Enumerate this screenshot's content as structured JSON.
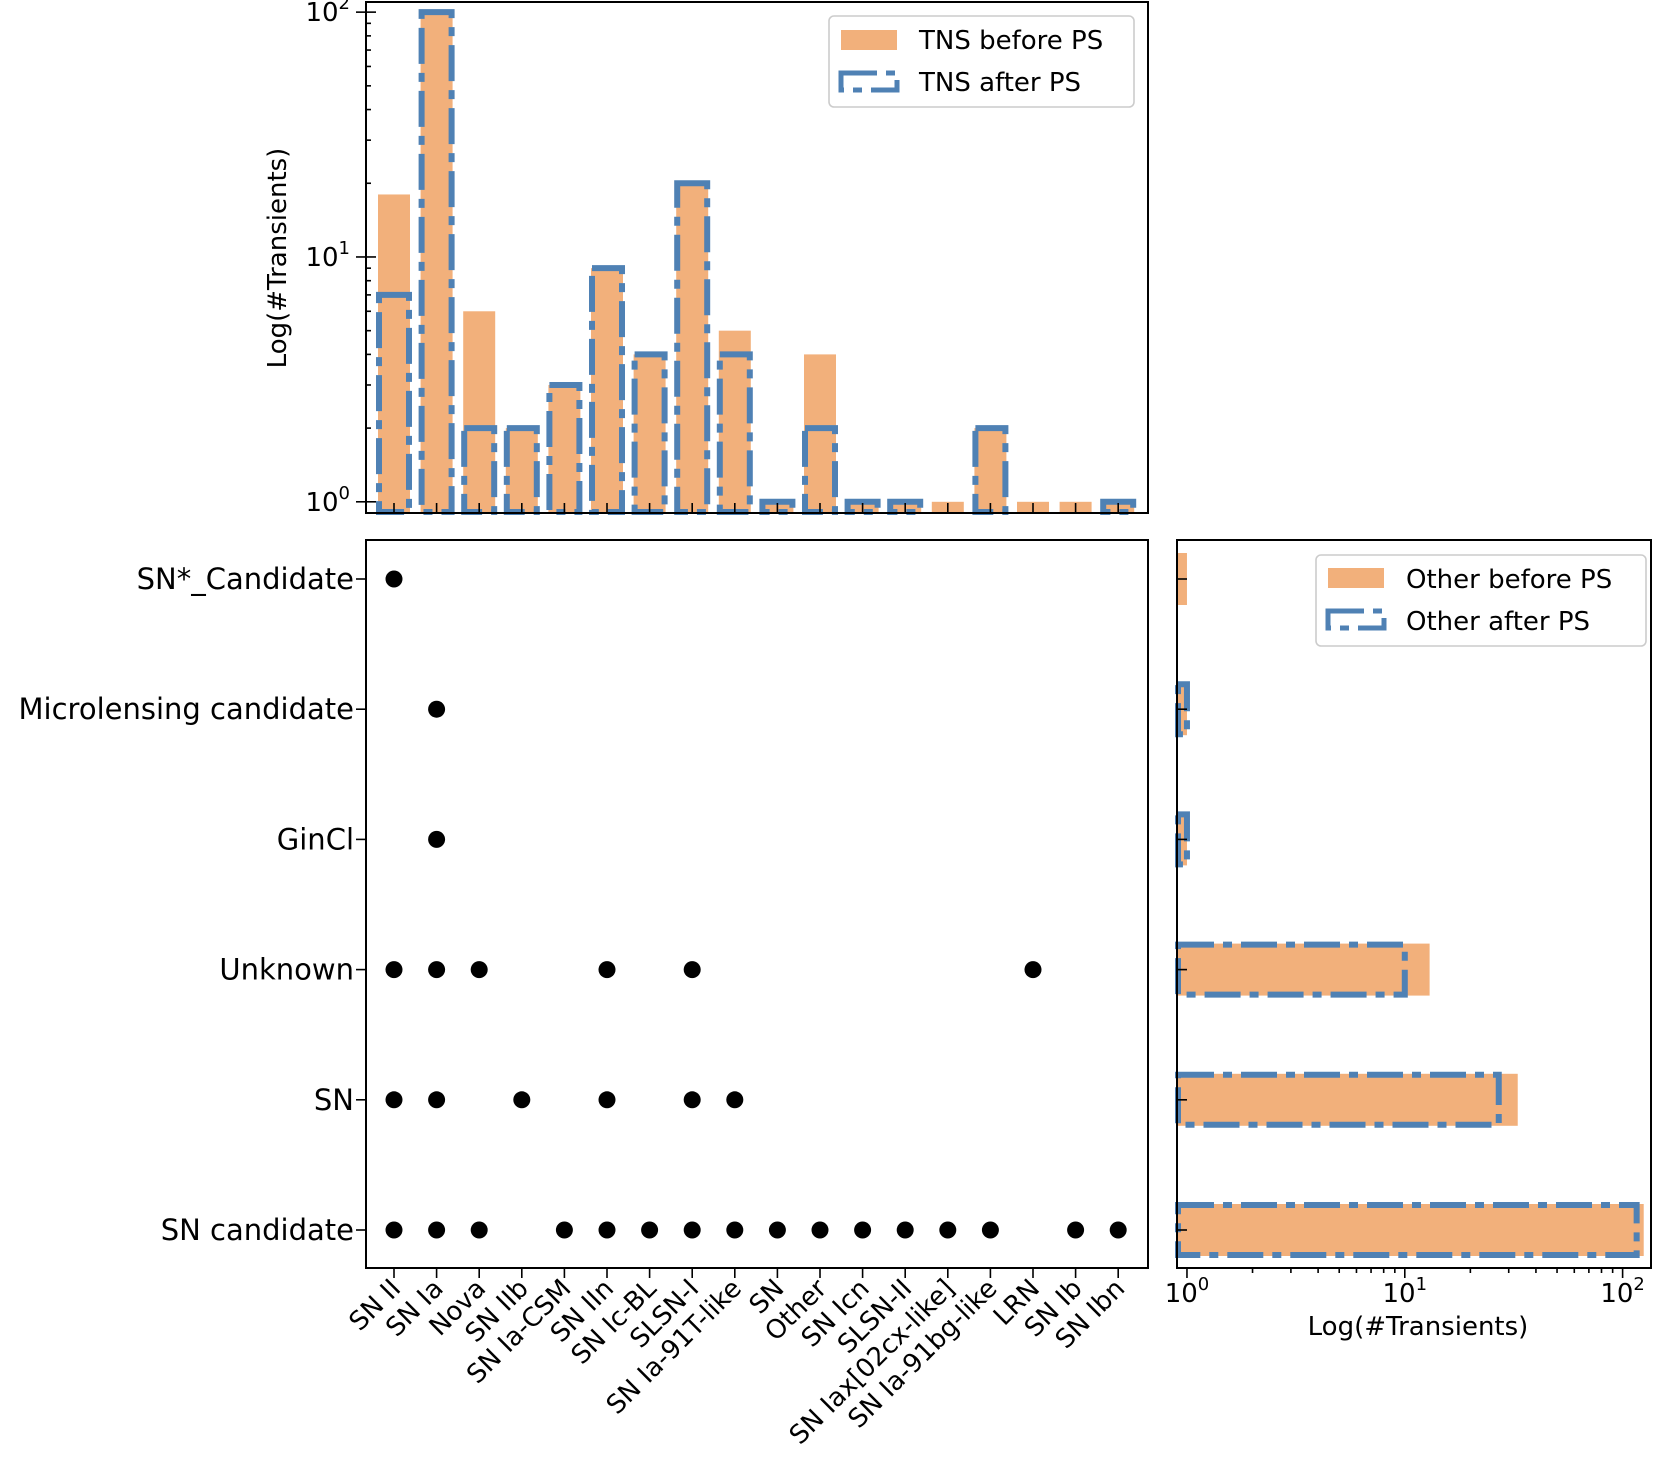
{
  "chart_data": [
    {
      "id": "top",
      "type": "bar",
      "yscale": "log",
      "ylabel": "Log(#Transients)",
      "ylim": [
        0.9,
        110
      ],
      "yticks": [
        {
          "v": 1,
          "base": "10",
          "exp": "0"
        },
        {
          "v": 10,
          "base": "10",
          "exp": "1"
        },
        {
          "v": 100,
          "base": "10",
          "exp": "2"
        }
      ],
      "categories": [
        "SN II",
        "SN Ia",
        "Nova",
        "SN IIb",
        "SN Ia-CSM",
        "SN IIn",
        "SN Ic-BL",
        "SLSN-I",
        "SN Ia-91T-like",
        "SN",
        "Other",
        "SN Icn",
        "SLSN-II",
        "SN Iax[02cx-like]",
        "SN Ia-91bg-like",
        "LRN",
        "SN Ib",
        "SN Ibn"
      ],
      "series": [
        {
          "name": "TNS before PS",
          "values": [
            18,
            100,
            6,
            2,
            3,
            9,
            4,
            20,
            5,
            1,
            4,
            1,
            1,
            1,
            2,
            1,
            1,
            1
          ]
        },
        {
          "name": "TNS after PS",
          "values": [
            7,
            100,
            2,
            2,
            3,
            9,
            4,
            20,
            4,
            1,
            2,
            1,
            1,
            0,
            2,
            0,
            0,
            1
          ]
        }
      ],
      "legend": {
        "position": "top-right",
        "entries": [
          "TNS before PS",
          "TNS after PS"
        ]
      }
    },
    {
      "id": "matrix",
      "type": "scatter",
      "y_categories": [
        "SN*_Candidate",
        "Microlensing candidate",
        "GinCl",
        "Unknown",
        "SN",
        "SN candidate"
      ],
      "x_categories": [
        "SN II",
        "SN Ia",
        "Nova",
        "SN IIb",
        "SN Ia-CSM",
        "SN IIn",
        "SN Ic-BL",
        "SLSN-I",
        "SN Ia-91T-like",
        "SN",
        "Other",
        "SN Icn",
        "SLSN-II",
        "SN Iax[02cx-like]",
        "SN Ia-91bg-like",
        "LRN",
        "SN Ib",
        "SN Ibn"
      ],
      "points": [
        {
          "x": "SN II",
          "y": "SN*_Candidate"
        },
        {
          "x": "SN Ia",
          "y": "Microlensing candidate"
        },
        {
          "x": "SN Ia",
          "y": "GinCl"
        },
        {
          "x": "SN II",
          "y": "Unknown"
        },
        {
          "x": "SN Ia",
          "y": "Unknown"
        },
        {
          "x": "Nova",
          "y": "Unknown"
        },
        {
          "x": "SN IIn",
          "y": "Unknown"
        },
        {
          "x": "SLSN-I",
          "y": "Unknown"
        },
        {
          "x": "LRN",
          "y": "Unknown"
        },
        {
          "x": "SN II",
          "y": "SN"
        },
        {
          "x": "SN Ia",
          "y": "SN"
        },
        {
          "x": "SN IIb",
          "y": "SN"
        },
        {
          "x": "SN IIn",
          "y": "SN"
        },
        {
          "x": "SLSN-I",
          "y": "SN"
        },
        {
          "x": "SN Ia-91T-like",
          "y": "SN"
        },
        {
          "x": "SN II",
          "y": "SN candidate"
        },
        {
          "x": "SN Ia",
          "y": "SN candidate"
        },
        {
          "x": "Nova",
          "y": "SN candidate"
        },
        {
          "x": "SN Ia-CSM",
          "y": "SN candidate"
        },
        {
          "x": "SN IIn",
          "y": "SN candidate"
        },
        {
          "x": "SN Ic-BL",
          "y": "SN candidate"
        },
        {
          "x": "SLSN-I",
          "y": "SN candidate"
        },
        {
          "x": "SN Ia-91T-like",
          "y": "SN candidate"
        },
        {
          "x": "SN",
          "y": "SN candidate"
        },
        {
          "x": "Other",
          "y": "SN candidate"
        },
        {
          "x": "SN Icn",
          "y": "SN candidate"
        },
        {
          "x": "SLSN-II",
          "y": "SN candidate"
        },
        {
          "x": "SN Iax[02cx-like]",
          "y": "SN candidate"
        },
        {
          "x": "SN Ia-91bg-like",
          "y": "SN candidate"
        },
        {
          "x": "SN Ib",
          "y": "SN candidate"
        },
        {
          "x": "SN Ibn",
          "y": "SN candidate"
        }
      ]
    },
    {
      "id": "right",
      "type": "bar",
      "orientation": "horizontal",
      "xscale": "log",
      "xlabel": "Log(#Transients)",
      "xlim": [
        0.9,
        135
      ],
      "xticks": [
        {
          "v": 1,
          "base": "10",
          "exp": "0"
        },
        {
          "v": 10,
          "base": "10",
          "exp": "1"
        },
        {
          "v": 100,
          "base": "10",
          "exp": "2"
        }
      ],
      "categories": [
        "SN*_Candidate",
        "Microlensing candidate",
        "GinCl",
        "Unknown",
        "SN",
        "SN candidate"
      ],
      "series": [
        {
          "name": "Other before PS",
          "values": [
            1,
            1,
            1,
            13,
            33,
            125
          ]
        },
        {
          "name": "Other after PS",
          "values": [
            0,
            1,
            1,
            10,
            27,
            116
          ]
        }
      ],
      "legend": {
        "position": "top-right",
        "entries": [
          "Other before PS",
          "Other after PS"
        ]
      }
    }
  ]
}
